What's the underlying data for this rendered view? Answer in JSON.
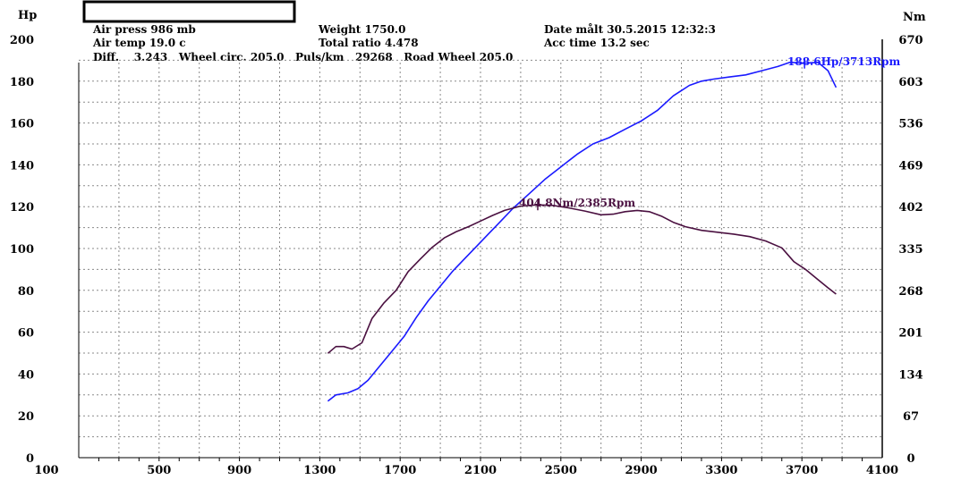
{
  "info": {
    "air_press": "Air press  986 mb",
    "air_temp": "Air temp  19.0 c",
    "diff_line": "Diff.    3.243   Wheel circ. 205.0   Puls/km   29268   Road Wheel 205.0",
    "weight": "Weight  1750.0",
    "total_ratio": "Total ratio 4.478",
    "date": "Date målt 30.5.2015 12:32:3",
    "acc_time": "Acc time  13.2 sec"
  },
  "colors": {
    "power": "#1a1aff",
    "torque": "#4a1040"
  },
  "chart_data": {
    "type": "line",
    "xlim": [
      100,
      4100
    ],
    "x_ticks": [
      "100",
      "500",
      "900",
      "1300",
      "1700",
      "2100",
      "2500",
      "2900",
      "3300",
      "3700",
      "4100"
    ],
    "left_axis": {
      "label": "Hp",
      "ylim": [
        0,
        200
      ],
      "ticks": [
        "0",
        "20",
        "40",
        "60",
        "80",
        "100",
        "120",
        "140",
        "160",
        "180",
        "200"
      ]
    },
    "right_axis": {
      "label": "Nm",
      "ylim": [
        0,
        670
      ],
      "ticks": [
        "0",
        "67",
        "134",
        "201",
        "268",
        "335",
        "402",
        "469",
        "536",
        "603",
        "670"
      ]
    },
    "grid": true,
    "annotations": {
      "power_peak": "188.6Hp/3713Rpm",
      "torque_peak": "404.8Nm/2385Rpm"
    },
    "series": [
      {
        "axis": "left",
        "x": [
          1340,
          1380,
          1440,
          1490,
          1540,
          1600,
          1660,
          1720,
          1780,
          1840,
          1900,
          1960,
          2020,
          2080,
          2140,
          2200,
          2260,
          2340,
          2420,
          2500,
          2580,
          2660,
          2740,
          2820,
          2900,
          2980,
          3060,
          3140,
          3200,
          3260,
          3340,
          3420,
          3500,
          3580,
          3640,
          3713,
          3780,
          3830,
          3870
        ],
        "y": [
          27,
          30,
          31,
          33,
          37,
          44,
          51,
          58,
          67,
          75,
          82,
          89,
          95,
          101,
          107,
          113,
          119,
          126,
          133,
          139,
          145,
          150,
          153,
          157,
          161,
          166,
          173,
          178,
          180,
          181,
          182,
          183,
          185,
          187,
          189,
          188.6,
          189,
          185,
          177
        ]
      },
      {
        "axis": "right",
        "x": [
          1340,
          1380,
          1420,
          1460,
          1510,
          1560,
          1620,
          1680,
          1740,
          1800,
          1860,
          1920,
          1980,
          2040,
          2100,
          2160,
          2220,
          2300,
          2385,
          2460,
          2540,
          2620,
          2700,
          2760,
          2820,
          2880,
          2940,
          3000,
          3060,
          3120,
          3200,
          3280,
          3360,
          3440,
          3520,
          3600,
          3660,
          3720,
          3780,
          3830,
          3870
        ],
        "y": [
          167,
          178,
          178,
          174,
          184,
          223,
          248,
          268,
          298,
          318,
          337,
          352,
          362,
          370,
          379,
          388,
          396,
          403,
          404.8,
          404,
          400,
          395,
          389,
          390,
          394,
          396,
          394,
          387,
          377,
          370,
          364,
          361,
          358,
          354,
          347,
          336,
          314,
          301,
          285,
          272,
          262
        ]
      }
    ]
  }
}
